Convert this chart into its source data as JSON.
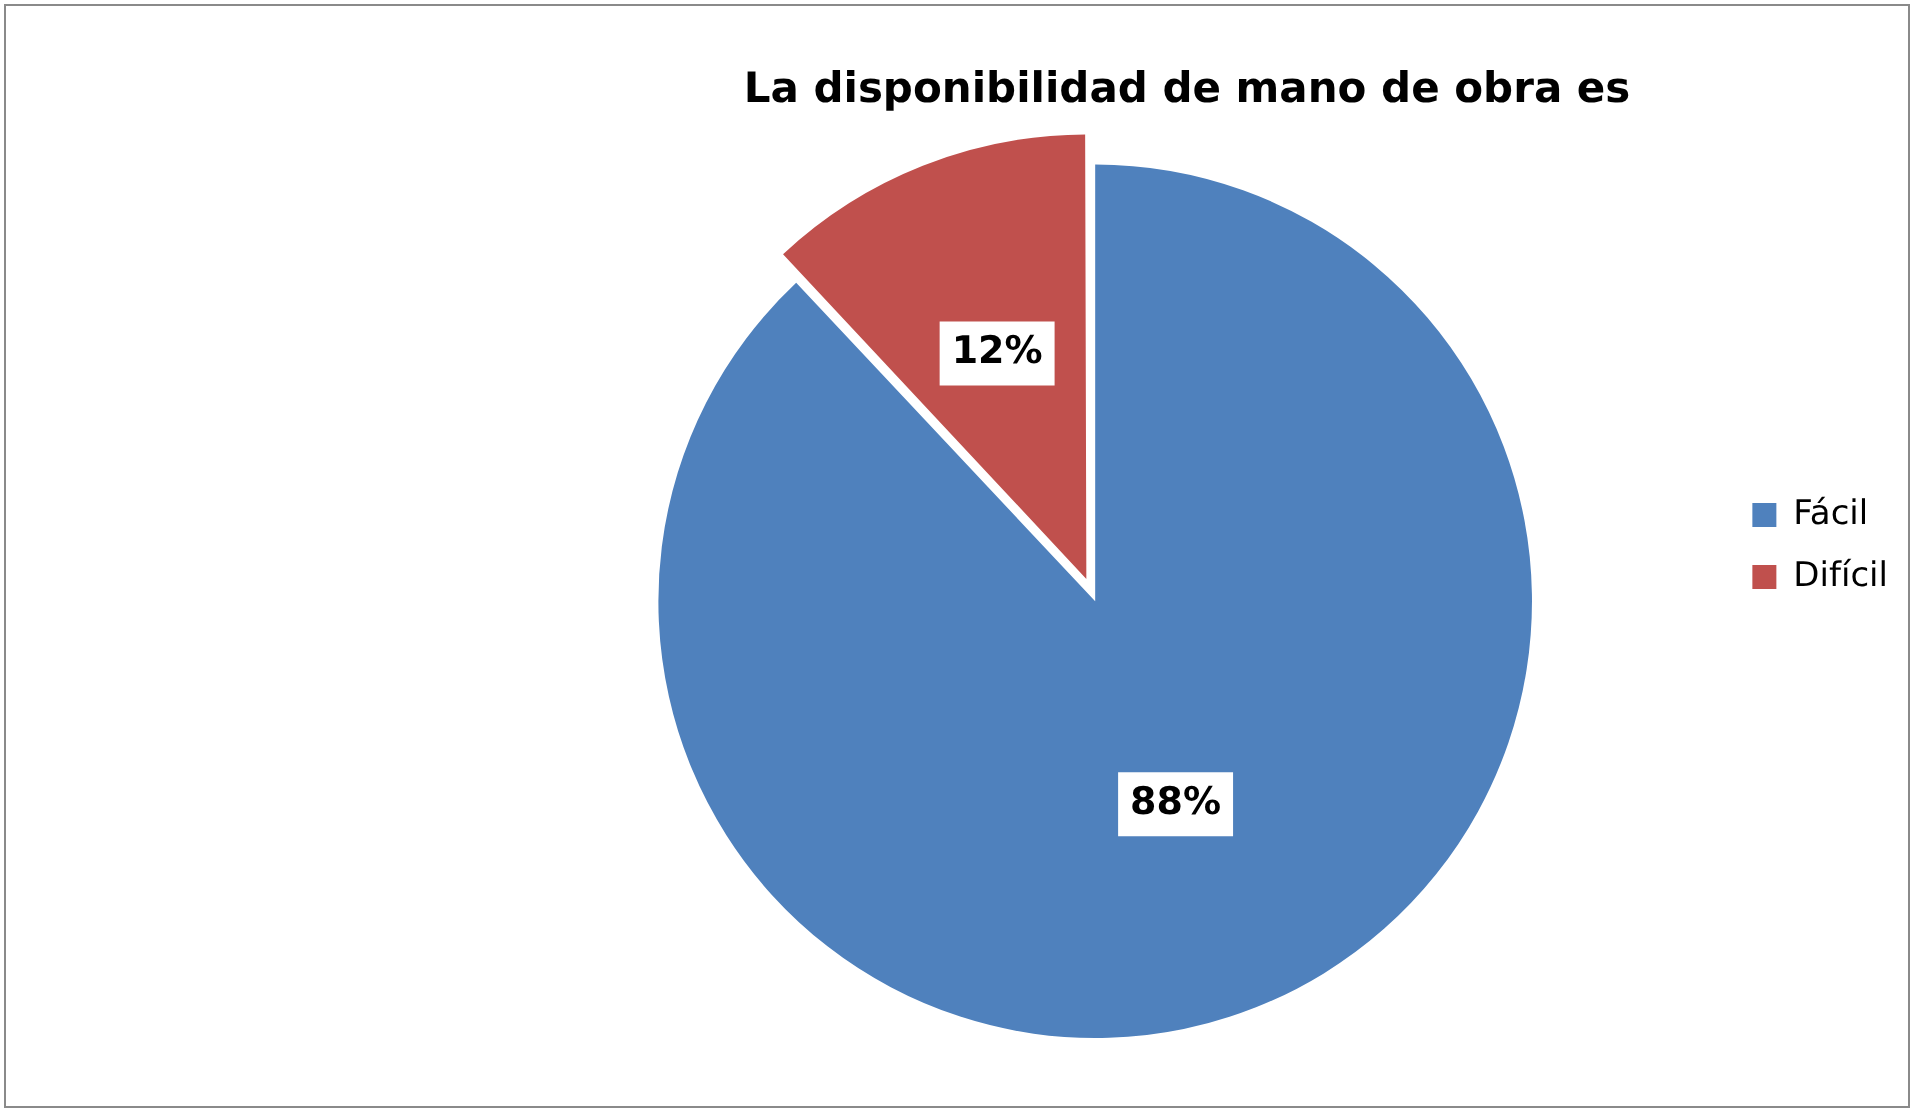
{
  "chart_data": {
    "type": "pie",
    "title": "La disponibilidad de mano de obra es",
    "categories": [
      "Fácil",
      "Difícil"
    ],
    "values": [
      88,
      12
    ],
    "colors": [
      "#4f81bd",
      "#c0504d"
    ],
    "value_labels": [
      "88%",
      "12%"
    ],
    "legend": "right"
  }
}
